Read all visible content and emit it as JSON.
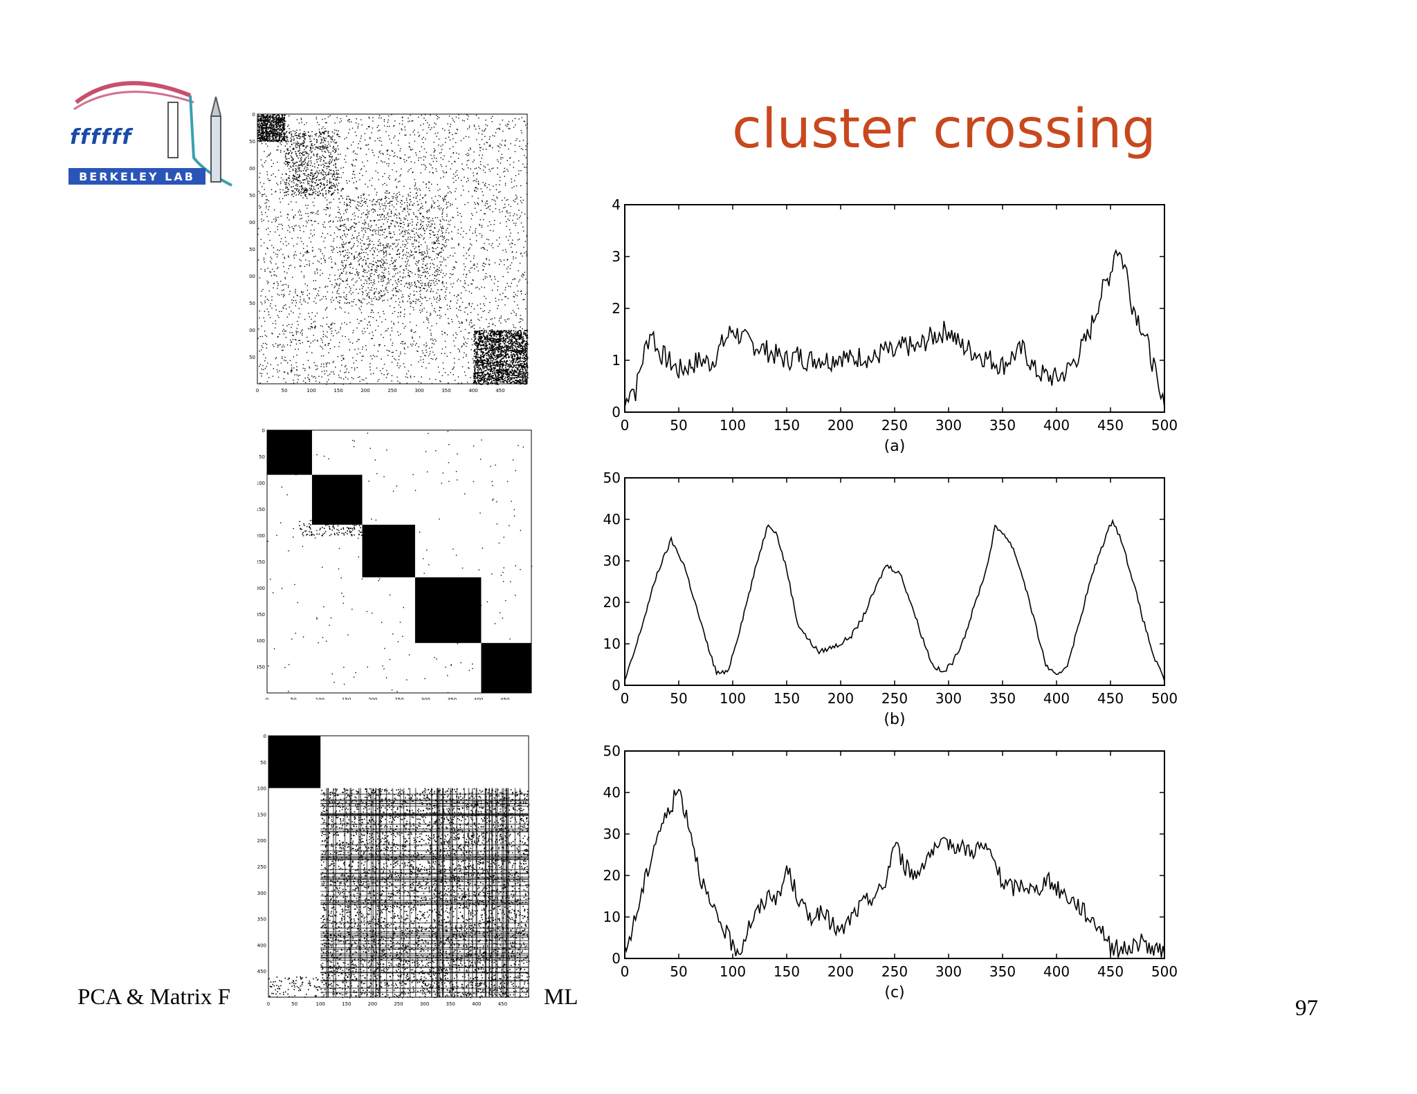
{
  "slide": {
    "title": "cluster crossing",
    "footer_left": "PCA & Matrix F",
    "footer_right": "ML",
    "page_number": "97",
    "logo_text": "BERKELEY LAB",
    "title_color": "#c8481e"
  },
  "matrices": [
    {
      "x_ticks": [
        "0",
        "50",
        "100",
        "150",
        "200",
        "250",
        "300",
        "350",
        "400",
        "450"
      ],
      "y_ticks": [
        "0",
        "50",
        "100",
        "150",
        "200",
        "250",
        "300",
        "350",
        "400",
        "450"
      ]
    },
    {
      "x_ticks": [
        "0",
        "50",
        "100",
        "150",
        "200",
        "250",
        "300",
        "350",
        "400",
        "450"
      ],
      "y_ticks": [
        "0",
        "50",
        "100",
        "150",
        "200",
        "250",
        "300",
        "350",
        "400",
        "450"
      ]
    },
    {
      "x_ticks": [
        "0",
        "50",
        "100",
        "150",
        "200",
        "250",
        "300",
        "350",
        "400",
        "450"
      ],
      "y_ticks": [
        "0",
        "50",
        "100",
        "150",
        "200",
        "250",
        "300",
        "350",
        "400",
        "450"
      ]
    }
  ],
  "chart_data": [
    {
      "type": "line",
      "xlabel": "(a)",
      "xlim": [
        0,
        500
      ],
      "ylim": [
        0,
        4
      ],
      "x_ticks": [
        "0",
        "50",
        "100",
        "150",
        "200",
        "250",
        "300",
        "350",
        "400",
        "450",
        "500"
      ],
      "y_ticks": [
        "0",
        "1",
        "2",
        "3",
        "4"
      ],
      "x": [
        0,
        5,
        10,
        15,
        20,
        25,
        30,
        40,
        50,
        60,
        70,
        80,
        90,
        100,
        110,
        120,
        130,
        140,
        150,
        160,
        170,
        180,
        190,
        200,
        210,
        220,
        230,
        240,
        250,
        260,
        270,
        280,
        290,
        300,
        310,
        320,
        330,
        340,
        350,
        360,
        370,
        380,
        390,
        400,
        410,
        420,
        430,
        440,
        450,
        455,
        460,
        465,
        470,
        480,
        490,
        495,
        500
      ],
      "values": [
        0.1,
        0.5,
        0.4,
        0.9,
        1.3,
        1.6,
        1.2,
        1.0,
        0.8,
        0.9,
        1.0,
        0.95,
        1.3,
        1.6,
        1.4,
        1.3,
        1.2,
        1.1,
        1.0,
        1.1,
        1.0,
        1.05,
        1.0,
        1.1,
        1.0,
        1.1,
        1.0,
        1.2,
        1.1,
        1.3,
        1.2,
        1.4,
        1.5,
        1.6,
        1.3,
        1.2,
        1.1,
        1.0,
        0.9,
        1.1,
        1.2,
        0.8,
        0.7,
        0.65,
        0.8,
        1.1,
        1.5,
        2.2,
        2.7,
        3.2,
        3.0,
        2.7,
        2.1,
        1.6,
        0.9,
        0.3,
        0.1
      ]
    },
    {
      "type": "line",
      "xlabel": "(b)",
      "xlim": [
        0,
        500
      ],
      "ylim": [
        0,
        50
      ],
      "x_ticks": [
        "0",
        "50",
        "100",
        "150",
        "200",
        "250",
        "300",
        "350",
        "400",
        "450",
        "500"
      ],
      "y_ticks": [
        "0",
        "10",
        "20",
        "30",
        "40",
        "50"
      ],
      "x": [
        0,
        10,
        20,
        30,
        43,
        55,
        65,
        75,
        85,
        95,
        105,
        115,
        125,
        133,
        140,
        150,
        160,
        170,
        180,
        190,
        200,
        210,
        220,
        230,
        242,
        255,
        265,
        275,
        285,
        295,
        305,
        315,
        325,
        335,
        343,
        350,
        360,
        370,
        380,
        390,
        400,
        410,
        420,
        430,
        440,
        452,
        460,
        470,
        480,
        490,
        500
      ],
      "values": [
        1,
        9,
        18,
        27,
        35,
        29,
        20,
        11,
        3,
        3,
        12,
        22,
        32,
        39,
        37,
        28,
        15,
        11,
        8,
        9,
        10,
        12,
        16,
        22,
        29,
        27,
        20,
        12,
        5,
        3,
        6,
        12,
        20,
        28,
        38,
        37,
        33,
        25,
        15,
        5,
        2,
        5,
        14,
        24,
        32,
        40,
        35,
        26,
        16,
        7,
        1
      ]
    },
    {
      "type": "line",
      "xlabel": "(c)",
      "xlim": [
        0,
        500
      ],
      "ylim": [
        0,
        50
      ],
      "x_ticks": [
        "0",
        "50",
        "100",
        "150",
        "200",
        "250",
        "300",
        "350",
        "400",
        "450",
        "500"
      ],
      "y_ticks": [
        "0",
        "10",
        "20",
        "30",
        "40",
        "50"
      ],
      "x": [
        0,
        10,
        20,
        30,
        40,
        50,
        60,
        70,
        80,
        90,
        100,
        107,
        115,
        125,
        135,
        143,
        150,
        160,
        170,
        180,
        190,
        200,
        210,
        220,
        230,
        240,
        250,
        260,
        270,
        280,
        290,
        300,
        310,
        320,
        330,
        340,
        350,
        360,
        370,
        380,
        390,
        400,
        410,
        420,
        430,
        440,
        450,
        460,
        470,
        480,
        490,
        500
      ],
      "values": [
        1,
        10,
        20,
        30,
        35,
        41,
        32,
        20,
        12,
        8,
        3,
        2,
        8,
        12,
        16,
        14,
        22,
        15,
        10,
        11,
        9,
        6,
        10,
        13,
        15,
        17,
        28,
        22,
        20,
        25,
        26,
        28,
        27,
        26,
        27,
        25,
        18,
        17,
        18,
        16,
        19,
        17,
        15,
        13,
        10,
        8,
        3,
        2,
        3,
        4,
        2,
        1
      ]
    }
  ]
}
